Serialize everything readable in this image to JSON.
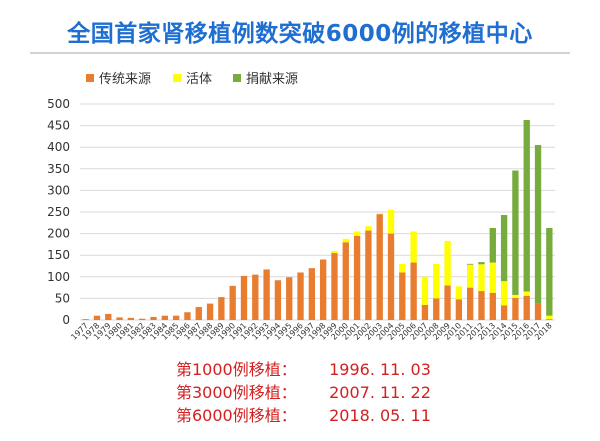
{
  "title": "全国首家肾移植例数突破6000例的移植中心",
  "chart_data": {
    "type": "bar",
    "stacked": true,
    "legend_position": "top-left",
    "grid": true,
    "ylim": [
      0,
      500
    ],
    "yticks": [
      0,
      50,
      100,
      150,
      200,
      250,
      300,
      350,
      400,
      450,
      500
    ],
    "categories": [
      "1977",
      "1978",
      "1979",
      "1980",
      "1981",
      "1982",
      "1983",
      "1984",
      "1985",
      "1986",
      "1987",
      "1988",
      "1989",
      "1990",
      "1991",
      "1992",
      "1993",
      "1994",
      "1995",
      "1996",
      "1997",
      "1998",
      "1999",
      "2000",
      "2001",
      "2002",
      "2003",
      "2004",
      "2005",
      "2006",
      "2007",
      "2008",
      "2009",
      "2010",
      "2011",
      "2012",
      "2013",
      "2014",
      "2015",
      "2016",
      "2017",
      "2018"
    ],
    "series": [
      {
        "name": "传统来源",
        "color": "#e87d30",
        "values": [
          2,
          10,
          14,
          6,
          5,
          3,
          7,
          10,
          10,
          18,
          30,
          38,
          53,
          79,
          102,
          105,
          117,
          92,
          99,
          110,
          120,
          140,
          155,
          180,
          195,
          207,
          245,
          200,
          110,
          133,
          35,
          50,
          80,
          48,
          75,
          67,
          63,
          34,
          51,
          56,
          38,
          2
        ]
      },
      {
        "name": "活体",
        "color": "#ffff00",
        "values": [
          0,
          0,
          0,
          0,
          0,
          0,
          0,
          0,
          0,
          0,
          0,
          0,
          0,
          0,
          0,
          0,
          0,
          0,
          0,
          0,
          0,
          0,
          5,
          8,
          10,
          10,
          2,
          55,
          20,
          72,
          65,
          80,
          103,
          30,
          53,
          62,
          70,
          56,
          7,
          10,
          0,
          8
        ]
      },
      {
        "name": "捐献来源",
        "color": "#77ab3e",
        "values": [
          0,
          0,
          0,
          0,
          0,
          0,
          0,
          0,
          0,
          0,
          0,
          0,
          0,
          0,
          0,
          0,
          0,
          0,
          0,
          0,
          0,
          0,
          0,
          0,
          0,
          0,
          0,
          0,
          0,
          0,
          0,
          0,
          0,
          0,
          2,
          5,
          80,
          153,
          288,
          397,
          367,
          203
        ]
      }
    ]
  },
  "milestones": [
    {
      "label": "第1000例移植：",
      "date": "1996. 11. 03"
    },
    {
      "label": "第3000例移植：",
      "date": "2007. 11. 22"
    },
    {
      "label": "第6000例移植：",
      "date": "2018. 05. 11"
    }
  ]
}
